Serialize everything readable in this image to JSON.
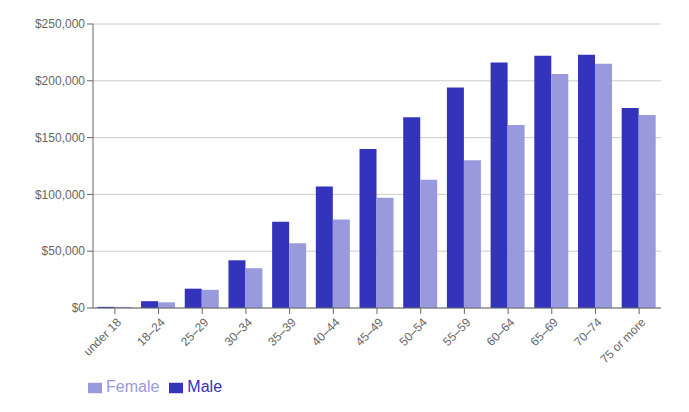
{
  "chart_data": {
    "type": "bar",
    "categories": [
      "under 18",
      "18–24",
      "25–29",
      "30–34",
      "35–39",
      "40–44",
      "45–49",
      "50–54",
      "55–59",
      "60–64",
      "65–69",
      "70–74",
      "75 or more"
    ],
    "series": [
      {
        "name": "Male",
        "color": "#3333bb",
        "values": [
          1000,
          6000,
          17000,
          42000,
          76000,
          107000,
          140000,
          168000,
          194000,
          216000,
          222000,
          223000,
          176000
        ]
      },
      {
        "name": "Female",
        "color": "#9999dd",
        "values": [
          1000,
          5000,
          16000,
          35000,
          57000,
          78000,
          97000,
          113000,
          130000,
          161000,
          206000,
          215000,
          170000
        ]
      }
    ],
    "ylim": [
      0,
      250000
    ],
    "yticks": [
      {
        "value": 0,
        "label": "$0"
      },
      {
        "value": 50000,
        "label": "$50,000"
      },
      {
        "value": 100000,
        "label": "$100,000"
      },
      {
        "value": 150000,
        "label": "$150,000"
      },
      {
        "value": 200000,
        "label": "$200,000"
      },
      {
        "value": 250000,
        "label": "$250,000"
      }
    ],
    "grid": true,
    "legend": "lower left"
  }
}
